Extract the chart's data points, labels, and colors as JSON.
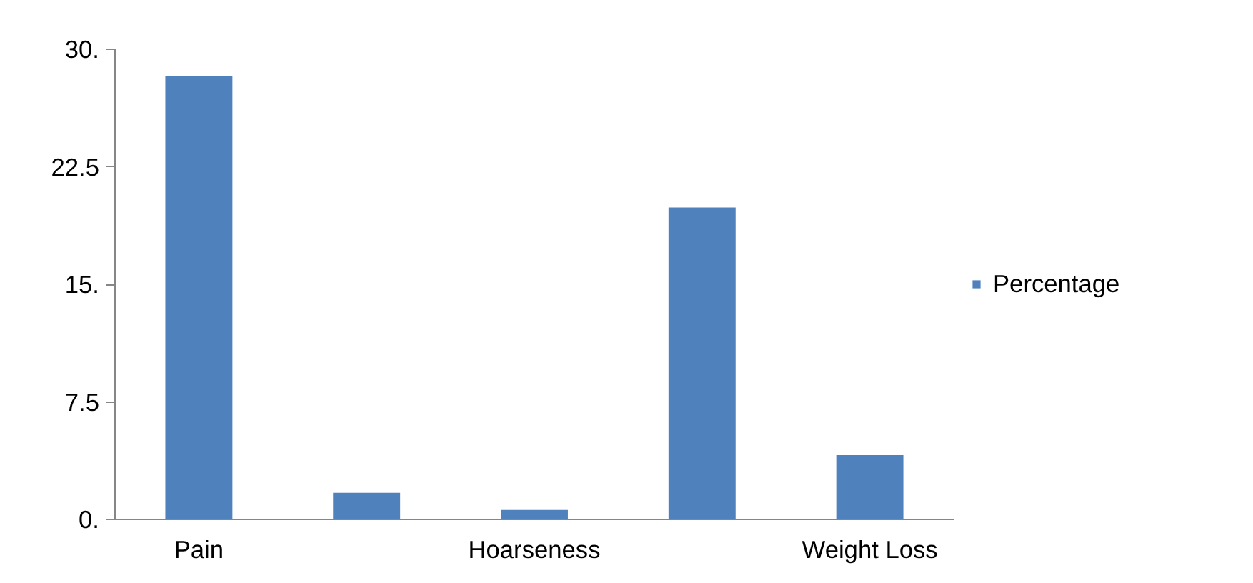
{
  "chart_data": {
    "type": "bar",
    "categories": [
      "Pain",
      null,
      "Hoarseness",
      null,
      "Weight Loss"
    ],
    "series": [
      {
        "name": "Percentage",
        "color": "#4f81bd",
        "values": [
          28.3,
          1.7,
          0.6,
          19.9,
          4.1
        ]
      }
    ],
    "ylim": [
      0,
      30
    ],
    "yticks": [
      {
        "value": 0,
        "label": "0."
      },
      7.5,
      {
        "value": 15,
        "label": "15."
      },
      22.5,
      {
        "value": 30,
        "label": "30."
      }
    ],
    "grid": false,
    "legend": "right"
  }
}
